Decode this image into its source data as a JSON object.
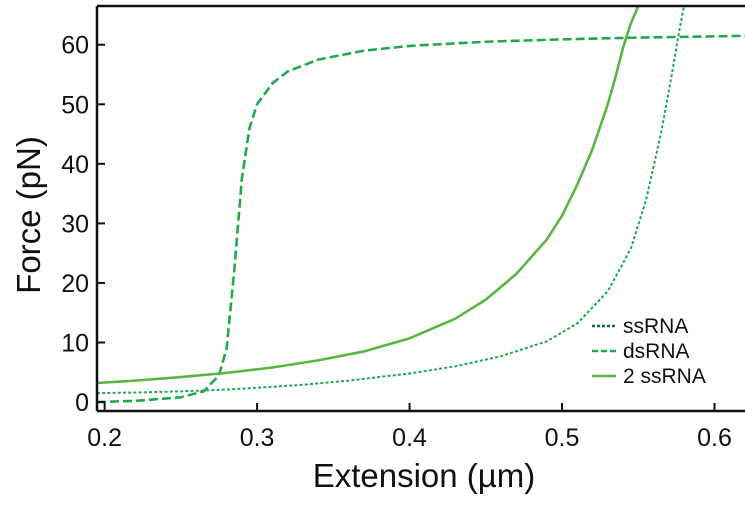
{
  "chart_data": {
    "type": "line",
    "title": "",
    "xlabel": "Extension (µm)",
    "ylabel": "Force (pN)",
    "xlim": [
      0.195,
      0.62
    ],
    "ylim": [
      -1.5,
      66.5
    ],
    "xticks": [
      0.2,
      0.3,
      0.4,
      0.5,
      0.6
    ],
    "xtick_labels": [
      "0.2",
      "0.3",
      "0.4",
      "0.5",
      "0.6"
    ],
    "yticks": [
      0,
      10,
      20,
      30,
      40,
      50,
      60
    ],
    "ytick_labels": [
      "0",
      "10",
      "20",
      "30",
      "40",
      "50",
      "60"
    ],
    "grid": false,
    "legend_position": "bottom-right",
    "series": [
      {
        "name": "ssRNA",
        "color": "#22a94f",
        "style": "dotted",
        "x": [
          0.195,
          0.22,
          0.25,
          0.28,
          0.3,
          0.33,
          0.36,
          0.4,
          0.43,
          0.46,
          0.49,
          0.51,
          0.53,
          0.545,
          0.555,
          0.565,
          0.572,
          0.577,
          0.58
        ],
        "y": [
          1.5,
          1.6,
          1.8,
          2.1,
          2.4,
          2.9,
          3.6,
          4.8,
          6.0,
          7.7,
          10.2,
          13.2,
          18.6,
          25.7,
          33.8,
          45.2,
          55.0,
          62.5,
          66.5
        ]
      },
      {
        "name": "dsRNA",
        "color": "#23a84f",
        "style": "dashed",
        "x": [
          0.195,
          0.22,
          0.25,
          0.265,
          0.275,
          0.28,
          0.285,
          0.29,
          0.295,
          0.3,
          0.31,
          0.32,
          0.34,
          0.37,
          0.4,
          0.45,
          0.5,
          0.55,
          0.6,
          0.62
        ],
        "y": [
          0.0,
          0.2,
          0.8,
          1.8,
          4.5,
          9.0,
          22.0,
          37.5,
          46.0,
          50.0,
          53.5,
          55.5,
          57.5,
          59.0,
          59.8,
          60.5,
          60.9,
          61.2,
          61.4,
          61.5
        ]
      },
      {
        "name": "2 ssRNA",
        "color": "#5ab545",
        "style": "solid",
        "x": [
          0.195,
          0.22,
          0.25,
          0.28,
          0.31,
          0.34,
          0.37,
          0.4,
          0.43,
          0.45,
          0.47,
          0.49,
          0.5,
          0.51,
          0.52,
          0.53,
          0.535,
          0.54,
          0.545,
          0.55
        ],
        "y": [
          3.2,
          3.6,
          4.2,
          4.9,
          5.8,
          7.0,
          8.5,
          10.7,
          14.0,
          17.2,
          21.5,
          27.3,
          31.3,
          36.5,
          42.5,
          50.0,
          54.5,
          59.5,
          63.5,
          66.5
        ]
      }
    ]
  }
}
